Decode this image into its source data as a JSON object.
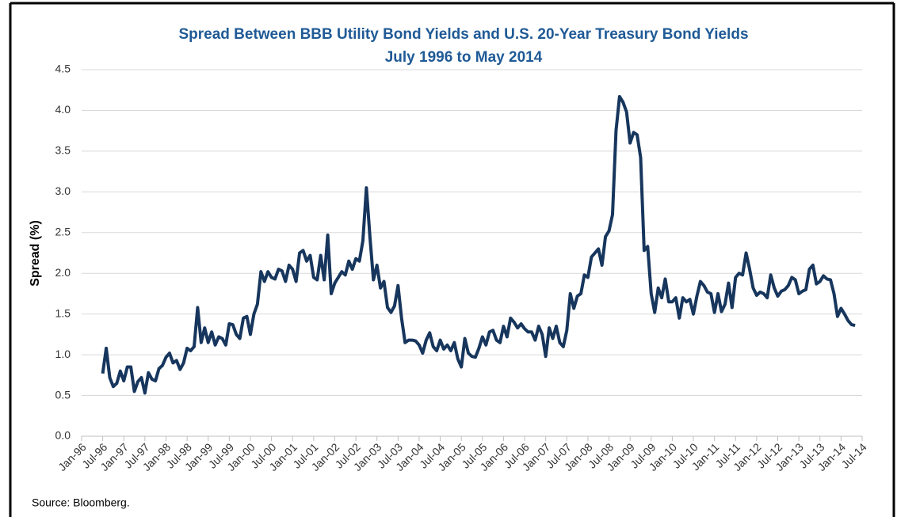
{
  "chart_data": {
    "type": "line",
    "title": "Spread Between BBB Utility Bond Yields and U.S. 20-Year Treasury Bond Yields",
    "subtitle": "July 1996 to May 2014",
    "y_label": "Spread (%)",
    "source": "Source: Bloomberg.",
    "color": "#17365d",
    "grid": true,
    "ylim": [
      0,
      4.5
    ],
    "yticks": [
      {
        "value": 0,
        "label": "0.0"
      },
      0.5,
      {
        "value": 1,
        "label": "1.0"
      },
      1.5,
      {
        "value": 2,
        "label": "2.0"
      },
      2.5,
      {
        "value": 3,
        "label": "3.0"
      },
      3.5,
      {
        "value": 4,
        "label": "4.0"
      },
      4.5
    ],
    "categories": [
      "Jan-96",
      null,
      null,
      null,
      null,
      null,
      "Jul-96",
      null,
      null,
      null,
      null,
      null,
      "Jan-97",
      null,
      null,
      null,
      null,
      null,
      "Jul-97",
      null,
      null,
      null,
      null,
      null,
      "Jan-98",
      null,
      null,
      null,
      null,
      null,
      "Jul-98",
      null,
      null,
      null,
      null,
      null,
      "Jan-99",
      null,
      null,
      null,
      null,
      null,
      "Jul-99",
      null,
      null,
      null,
      null,
      null,
      "Jan-00",
      null,
      null,
      null,
      null,
      null,
      "Jul-00",
      null,
      null,
      null,
      null,
      null,
      "Jan-01",
      null,
      null,
      null,
      null,
      null,
      "Jul-01",
      null,
      null,
      null,
      null,
      null,
      "Jan-02",
      null,
      null,
      null,
      null,
      null,
      "Jul-02",
      null,
      null,
      null,
      null,
      null,
      "Jan-03",
      null,
      null,
      null,
      null,
      null,
      "Jul-03",
      null,
      null,
      null,
      null,
      null,
      "Jan-04",
      null,
      null,
      null,
      null,
      null,
      "Jul-04",
      null,
      null,
      null,
      null,
      null,
      "Jan-05",
      null,
      null,
      null,
      null,
      null,
      "Jul-05",
      null,
      null,
      null,
      null,
      null,
      "Jan-06",
      null,
      null,
      null,
      null,
      null,
      "Jul-06",
      null,
      null,
      null,
      null,
      null,
      "Jan-07",
      null,
      null,
      null,
      null,
      null,
      "Jul-07",
      null,
      null,
      null,
      null,
      null,
      "Jan-08",
      null,
      null,
      null,
      null,
      null,
      "Jul-08",
      null,
      null,
      null,
      null,
      null,
      "Jan-09",
      null,
      null,
      null,
      null,
      null,
      "Jul-09",
      null,
      null,
      null,
      null,
      null,
      "Jan-10",
      null,
      null,
      null,
      null,
      null,
      "Jul-10",
      null,
      null,
      null,
      null,
      null,
      "Jan-11",
      null,
      null,
      null,
      null,
      null,
      "Jul-11",
      null,
      null,
      null,
      null,
      null,
      "Jan-12",
      null,
      null,
      null,
      null,
      null,
      "Jul-12",
      null,
      null,
      null,
      null,
      null,
      "Jan-13",
      null,
      null,
      null,
      null,
      null,
      "Jul-13",
      null,
      null,
      null,
      null,
      null,
      "Jan-14",
      null,
      null,
      null,
      null,
      null,
      "Jul-14"
    ],
    "values": [
      null,
      null,
      null,
      null,
      null,
      null,
      0.77,
      1.08,
      0.72,
      0.61,
      0.65,
      0.8,
      0.68,
      0.85,
      0.85,
      0.55,
      0.67,
      0.72,
      0.53,
      0.78,
      0.7,
      0.68,
      0.83,
      0.87,
      0.97,
      1.02,
      0.9,
      0.93,
      0.82,
      0.9,
      1.08,
      1.05,
      1.1,
      1.58,
      1.15,
      1.33,
      1.15,
      1.28,
      1.12,
      1.22,
      1.2,
      1.12,
      1.38,
      1.37,
      1.25,
      1.2,
      1.45,
      1.47,
      1.25,
      1.5,
      1.62,
      2.02,
      1.9,
      2.02,
      1.95,
      1.93,
      2.05,
      2.03,
      1.9,
      2.1,
      2.05,
      1.9,
      2.25,
      2.28,
      2.15,
      2.22,
      1.95,
      1.92,
      2.22,
      1.92,
      2.47,
      1.75,
      1.88,
      1.95,
      2.02,
      1.98,
      2.15,
      2.05,
      2.18,
      2.15,
      2.4,
      3.05,
      2.45,
      1.92,
      2.1,
      1.82,
      1.9,
      1.58,
      1.52,
      1.6,
      1.85,
      1.45,
      1.15,
      1.18,
      1.18,
      1.17,
      1.12,
      1.02,
      1.18,
      1.27,
      1.1,
      1.05,
      1.18,
      1.07,
      1.12,
      1.05,
      1.15,
      0.95,
      0.85,
      1.2,
      1.02,
      0.98,
      0.97,
      1.08,
      1.22,
      1.12,
      1.28,
      1.3,
      1.18,
      1.15,
      1.35,
      1.22,
      1.45,
      1.4,
      1.33,
      1.38,
      1.32,
      1.28,
      1.28,
      1.18,
      1.35,
      1.25,
      0.98,
      1.33,
      1.2,
      1.35,
      1.15,
      1.1,
      1.3,
      1.75,
      1.57,
      1.72,
      1.75,
      1.98,
      1.95,
      2.2,
      2.25,
      2.3,
      2.1,
      2.45,
      2.52,
      2.72,
      3.75,
      4.17,
      4.1,
      3.98,
      3.6,
      3.73,
      3.7,
      3.42,
      2.28,
      2.33,
      1.75,
      1.52,
      1.82,
      1.7,
      1.93,
      1.65,
      1.65,
      1.7,
      1.45,
      1.7,
      1.65,
      1.68,
      1.5,
      1.72,
      1.9,
      1.85,
      1.77,
      1.75,
      1.52,
      1.75,
      1.53,
      1.62,
      1.88,
      1.58,
      1.95,
      2.0,
      1.98,
      2.25,
      2.05,
      1.82,
      1.73,
      1.77,
      1.75,
      1.7,
      1.98,
      1.82,
      1.72,
      1.78,
      1.8,
      1.85,
      1.95,
      1.92,
      1.75,
      1.78,
      1.8,
      2.05,
      2.1,
      1.87,
      1.9,
      1.97,
      1.93,
      1.92,
      1.75,
      1.47,
      1.57,
      1.5,
      1.42,
      1.37,
      1.36,
      null,
      null
    ]
  }
}
